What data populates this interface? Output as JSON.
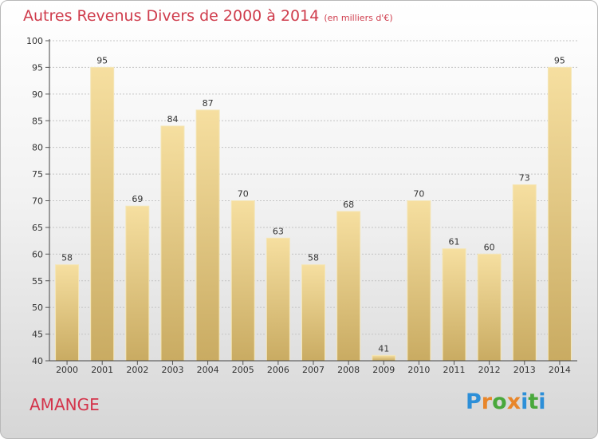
{
  "title": "Autres Revenus Divers de 2000 à 2014",
  "title_unit": "(en milliers d'€)",
  "commune": "AMANGE",
  "logo": {
    "text": "Proxiti",
    "colors": [
      "#2d8fd8",
      "#e8862a",
      "#49a83c",
      "#e8862a",
      "#2d8fd8",
      "#49a83c",
      "#2d8fd8"
    ]
  },
  "colors": {
    "title": "#cf3c4c",
    "bar_top": "#f6dfa0",
    "bar_bottom": "#c9ab62",
    "grid": "#c4c4c4"
  },
  "chart_data": {
    "type": "bar",
    "categories": [
      "2000",
      "2001",
      "2002",
      "2003",
      "2004",
      "2005",
      "2006",
      "2007",
      "2008",
      "2009",
      "2010",
      "2011",
      "2012",
      "2013",
      "2014"
    ],
    "values": [
      58,
      95,
      69,
      84,
      87,
      70,
      63,
      58,
      68,
      41,
      70,
      61,
      60,
      73,
      95
    ],
    "data_labels": [
      "58",
      "95",
      "69",
      "84",
      "87",
      "70",
      "63",
      "58",
      "68",
      "41",
      "70",
      "61",
      "60",
      "73",
      "95"
    ],
    "ylim": [
      40,
      100
    ],
    "yticks": [
      40,
      45,
      50,
      55,
      60,
      65,
      70,
      75,
      80,
      85,
      90,
      95,
      100
    ],
    "grid": true
  }
}
